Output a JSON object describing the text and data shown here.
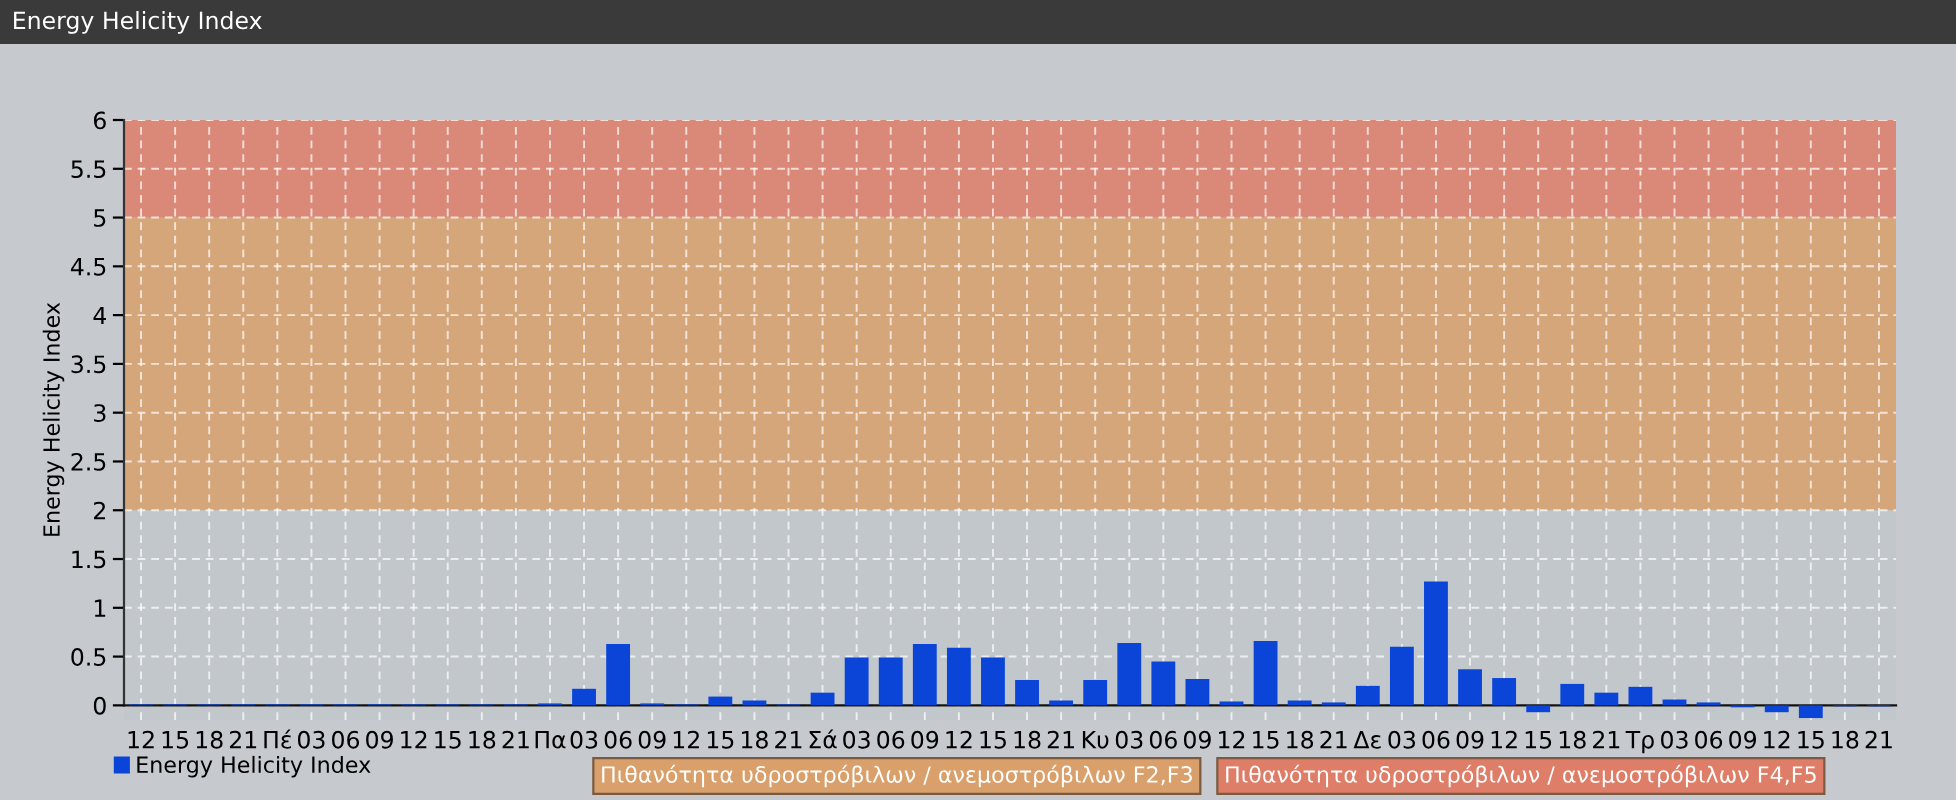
{
  "chart_data": {
    "type": "bar",
    "title": "Energy Helicity Index",
    "ylabel": "Energy Helicity Index",
    "categories": [
      "12",
      "15",
      "18",
      "21",
      "Πέ",
      "03",
      "06",
      "09",
      "12",
      "15",
      "18",
      "21",
      "Πα",
      "03",
      "06",
      "09",
      "12",
      "15",
      "18",
      "21",
      "Σά",
      "03",
      "06",
      "09",
      "12",
      "15",
      "18",
      "21",
      "Κυ",
      "03",
      "06",
      "09",
      "12",
      "15",
      "18",
      "21",
      "Δε",
      "03",
      "06",
      "09",
      "12",
      "15",
      "18",
      "21",
      "Τρ",
      "03",
      "06",
      "09",
      "12",
      "15",
      "18",
      "21"
    ],
    "series": [
      {
        "name": "Energy Helicity Index",
        "color": "#0a45d8",
        "values": [
          0.01,
          0.01,
          0.01,
          0.01,
          0.01,
          0.01,
          0.01,
          0.01,
          0.01,
          0.01,
          0.01,
          0.01,
          0.02,
          0.17,
          0.63,
          0.02,
          0.01,
          0.09,
          0.05,
          0.01,
          0.13,
          0.49,
          0.49,
          0.63,
          0.59,
          0.49,
          0.26,
          0.05,
          0.26,
          0.64,
          0.45,
          0.27,
          0.04,
          0.66,
          0.05,
          0.03,
          0.2,
          0.6,
          1.27,
          0.37,
          0.28,
          -0.07,
          0.22,
          0.13,
          0.19,
          0.06,
          0.03,
          -0.02,
          -0.07,
          -0.13,
          -0.01,
          -0.01
        ]
      }
    ],
    "ylim": [
      -0.15,
      6
    ],
    "yticks": [
      0,
      0.5,
      1,
      1.5,
      2,
      2.5,
      3,
      3.5,
      4,
      4.5,
      5,
      5.5,
      6
    ],
    "bands": [
      {
        "axis": "y",
        "from": 2,
        "to": 5,
        "color": "#d9a06c"
      },
      {
        "axis": "y",
        "from": 5,
        "to": 6,
        "color": "#de7e68"
      }
    ],
    "annotations": [
      "Πιθανότητα υδροστρόβιλων / ανεμοστρόβιλων F2,F3",
      "Πιθανότητα υδροστρόβιλων / ανεμοστρόβιλων F4,F5"
    ],
    "grid": true,
    "legend": "bottom left"
  }
}
